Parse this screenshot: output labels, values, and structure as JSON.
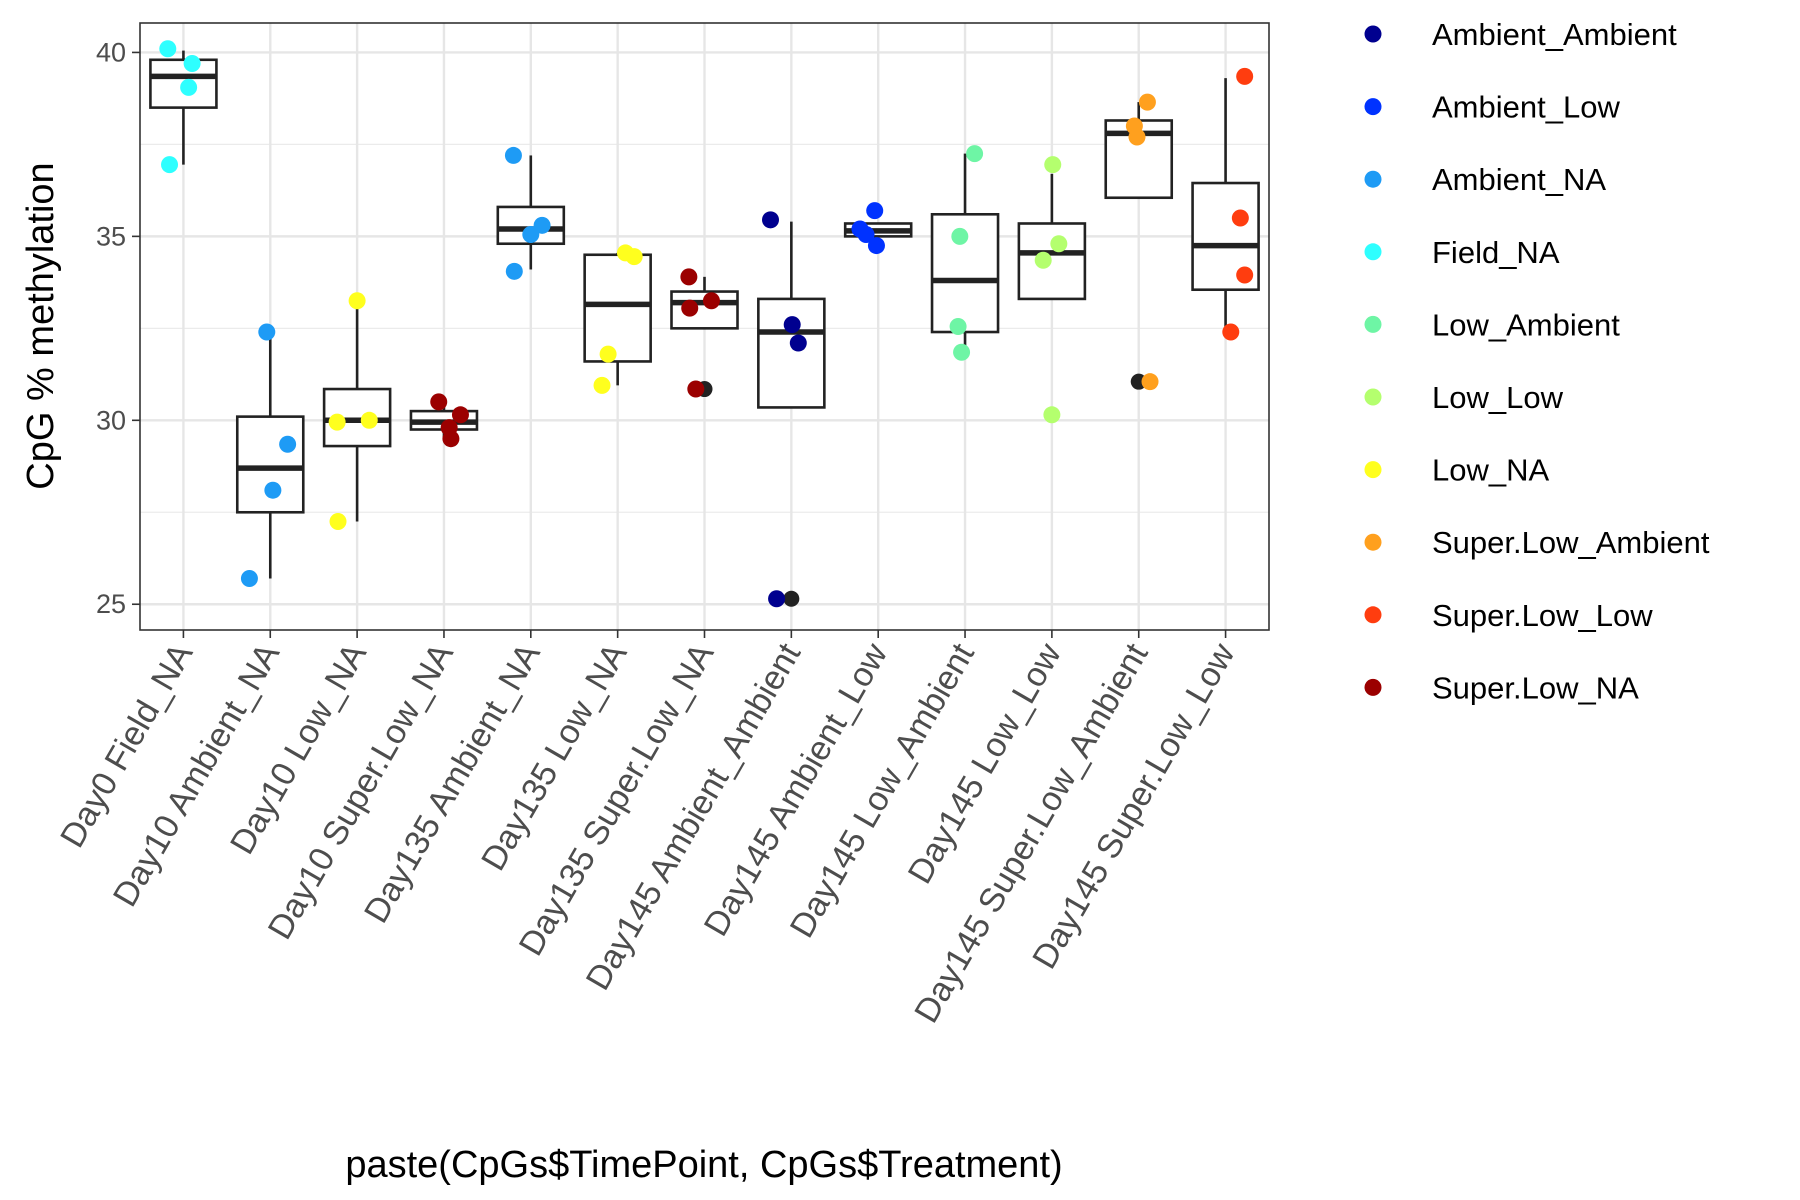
{
  "chart_data": {
    "type": "box",
    "xlabel": "paste(CpGs$TimePoint, CpGs$Treatment)",
    "ylabel": "CpG % methylation",
    "ylim": [
      24.3,
      40.8
    ],
    "yticks": [
      25,
      30,
      35,
      40
    ],
    "grid": true,
    "legend_position": "right",
    "colors": {
      "Ambient_Ambient": "#00008F",
      "Ambient_Low": "#0032FF",
      "Ambient_NA": "#1E9BF5",
      "Field_NA": "#2EFFFF",
      "Low_Ambient": "#6EF5A5",
      "Low_Low": "#B4FF6E",
      "Low_NA": "#FFFF1E",
      "Super.Low_Ambient": "#FFA01E",
      "Super.Low_Low": "#FF3D0F",
      "Super.Low_NA": "#9B0000"
    },
    "outlier_color": "#222222",
    "legend": [
      "Ambient_Ambient",
      "Ambient_Low",
      "Ambient_NA",
      "Field_NA",
      "Low_Ambient",
      "Low_Low",
      "Low_NA",
      "Super.Low_Ambient",
      "Super.Low_Low",
      "Super.Low_NA"
    ],
    "categories": [
      "Day0 Field_NA",
      "Day10 Ambient_NA",
      "Day10 Low_NA",
      "Day10 Super.Low_NA",
      "Day135 Ambient_NA",
      "Day135 Low_NA",
      "Day135 Super.Low_NA",
      "Day145 Ambient_Ambient",
      "Day145 Ambient_Low",
      "Day145 Low_Ambient",
      "Day145 Low_Low",
      "Day145 Super.Low_Ambient",
      "Day145 Super.Low_Low"
    ],
    "boxes": [
      {
        "q1": 38.5,
        "median": 39.35,
        "q3": 39.8,
        "wlo": 36.95,
        "whi": 40.05,
        "outliers": []
      },
      {
        "q1": 27.5,
        "median": 28.7,
        "q3": 30.1,
        "wlo": 25.7,
        "whi": 32.4,
        "outliers": []
      },
      {
        "q1": 29.3,
        "median": 30.0,
        "q3": 30.85,
        "wlo": 27.25,
        "whi": 33.25,
        "outliers": [
          33.25
        ]
      },
      {
        "q1": 29.75,
        "median": 29.95,
        "q3": 30.25,
        "wlo": 29.5,
        "whi": 30.45,
        "outliers": []
      },
      {
        "q1": 34.8,
        "median": 35.2,
        "q3": 35.8,
        "wlo": 34.1,
        "whi": 37.2,
        "outliers": []
      },
      {
        "q1": 31.6,
        "median": 33.15,
        "q3": 34.5,
        "wlo": 30.95,
        "whi": 34.55,
        "outliers": []
      },
      {
        "q1": 32.5,
        "median": 33.2,
        "q3": 33.5,
        "wlo": 32.5,
        "whi": 33.9,
        "outliers": [
          30.85
        ]
      },
      {
        "q1": 30.35,
        "median": 32.4,
        "q3": 33.3,
        "wlo": 30.35,
        "whi": 35.4,
        "outliers": [
          25.15
        ]
      },
      {
        "q1": 35.0,
        "median": 35.15,
        "q3": 35.35,
        "wlo": 35.0,
        "whi": 35.35,
        "outliers": []
      },
      {
        "q1": 32.4,
        "median": 33.8,
        "q3": 35.6,
        "wlo": 31.85,
        "whi": 37.25,
        "outliers": []
      },
      {
        "q1": 33.3,
        "median": 34.55,
        "q3": 35.35,
        "wlo": 33.3,
        "whi": 36.7,
        "outliers": [
          30.15
        ]
      },
      {
        "q1": 36.05,
        "median": 37.8,
        "q3": 38.15,
        "wlo": 36.05,
        "whi": 38.65,
        "outliers": [
          31.05
        ]
      },
      {
        "q1": 33.55,
        "median": 34.75,
        "q3": 36.45,
        "wlo": 32.4,
        "whi": 39.3,
        "outliers": []
      }
    ],
    "points": [
      {
        "cat": 0,
        "dx": -0.18,
        "y": 40.1,
        "group": "Field_NA"
      },
      {
        "cat": 0,
        "dx": 0.1,
        "y": 39.7,
        "group": "Field_NA"
      },
      {
        "cat": 0,
        "dx": 0.06,
        "y": 39.05,
        "group": "Field_NA"
      },
      {
        "cat": 0,
        "dx": -0.16,
        "y": 36.95,
        "group": "Field_NA"
      },
      {
        "cat": 1,
        "dx": -0.04,
        "y": 32.4,
        "group": "Ambient_NA"
      },
      {
        "cat": 1,
        "dx": 0.2,
        "y": 29.35,
        "group": "Ambient_NA"
      },
      {
        "cat": 1,
        "dx": 0.03,
        "y": 28.1,
        "group": "Ambient_NA"
      },
      {
        "cat": 1,
        "dx": -0.24,
        "y": 25.7,
        "group": "Ambient_NA"
      },
      {
        "cat": 2,
        "dx": 0.0,
        "y": 33.25,
        "group": "Low_NA"
      },
      {
        "cat": 2,
        "dx": -0.23,
        "y": 29.95,
        "group": "Low_NA"
      },
      {
        "cat": 2,
        "dx": 0.14,
        "y": 30.0,
        "group": "Low_NA"
      },
      {
        "cat": 2,
        "dx": -0.22,
        "y": 27.25,
        "group": "Low_NA"
      },
      {
        "cat": 3,
        "dx": -0.06,
        "y": 30.5,
        "group": "Super.Low_NA"
      },
      {
        "cat": 3,
        "dx": 0.19,
        "y": 30.15,
        "group": "Super.Low_NA"
      },
      {
        "cat": 3,
        "dx": 0.06,
        "y": 29.8,
        "group": "Super.Low_NA"
      },
      {
        "cat": 3,
        "dx": 0.08,
        "y": 29.5,
        "group": "Super.Low_NA"
      },
      {
        "cat": 4,
        "dx": -0.2,
        "y": 37.2,
        "group": "Ambient_NA"
      },
      {
        "cat": 4,
        "dx": 0.13,
        "y": 35.3,
        "group": "Ambient_NA"
      },
      {
        "cat": 4,
        "dx": 0.0,
        "y": 35.05,
        "group": "Ambient_NA"
      },
      {
        "cat": 4,
        "dx": -0.19,
        "y": 34.05,
        "group": "Ambient_NA"
      },
      {
        "cat": 5,
        "dx": 0.09,
        "y": 34.55,
        "group": "Low_NA"
      },
      {
        "cat": 5,
        "dx": 0.19,
        "y": 34.45,
        "group": "Low_NA"
      },
      {
        "cat": 5,
        "dx": -0.11,
        "y": 31.8,
        "group": "Low_NA"
      },
      {
        "cat": 5,
        "dx": -0.18,
        "y": 30.95,
        "group": "Low_NA"
      },
      {
        "cat": 6,
        "dx": -0.18,
        "y": 33.9,
        "group": "Super.Low_NA"
      },
      {
        "cat": 6,
        "dx": 0.08,
        "y": 33.25,
        "group": "Super.Low_NA"
      },
      {
        "cat": 6,
        "dx": -0.17,
        "y": 33.05,
        "group": "Super.Low_NA"
      },
      {
        "cat": 6,
        "dx": -0.1,
        "y": 30.85,
        "group": "Super.Low_NA"
      },
      {
        "cat": 7,
        "dx": -0.24,
        "y": 35.45,
        "group": "Ambient_Ambient"
      },
      {
        "cat": 7,
        "dx": 0.01,
        "y": 32.6,
        "group": "Ambient_Ambient"
      },
      {
        "cat": 7,
        "dx": 0.08,
        "y": 32.1,
        "group": "Ambient_Ambient"
      },
      {
        "cat": 7,
        "dx": -0.17,
        "y": 25.15,
        "group": "Ambient_Ambient"
      },
      {
        "cat": 8,
        "dx": -0.04,
        "y": 35.7,
        "group": "Ambient_Low"
      },
      {
        "cat": 8,
        "dx": -0.21,
        "y": 35.2,
        "group": "Ambient_Low"
      },
      {
        "cat": 8,
        "dx": -0.14,
        "y": 35.05,
        "group": "Ambient_Low"
      },
      {
        "cat": 8,
        "dx": -0.02,
        "y": 34.75,
        "group": "Ambient_Low"
      },
      {
        "cat": 9,
        "dx": 0.11,
        "y": 37.25,
        "group": "Low_Ambient"
      },
      {
        "cat": 9,
        "dx": -0.06,
        "y": 35.0,
        "group": "Low_Ambient"
      },
      {
        "cat": 9,
        "dx": -0.08,
        "y": 32.55,
        "group": "Low_Ambient"
      },
      {
        "cat": 9,
        "dx": -0.04,
        "y": 31.85,
        "group": "Low_Ambient"
      },
      {
        "cat": 10,
        "dx": 0.01,
        "y": 36.95,
        "group": "Low_Low"
      },
      {
        "cat": 10,
        "dx": 0.08,
        "y": 34.8,
        "group": "Low_Low"
      },
      {
        "cat": 10,
        "dx": -0.1,
        "y": 34.35,
        "group": "Low_Low"
      },
      {
        "cat": 10,
        "dx": 0.0,
        "y": 30.15,
        "group": "Low_Low"
      },
      {
        "cat": 11,
        "dx": 0.1,
        "y": 38.65,
        "group": "Super.Low_Ambient"
      },
      {
        "cat": 11,
        "dx": -0.05,
        "y": 38.0,
        "group": "Super.Low_Ambient"
      },
      {
        "cat": 11,
        "dx": -0.02,
        "y": 37.7,
        "group": "Super.Low_Ambient"
      },
      {
        "cat": 11,
        "dx": 0.13,
        "y": 31.05,
        "group": "Super.Low_Ambient"
      },
      {
        "cat": 12,
        "dx": 0.22,
        "y": 39.35,
        "group": "Super.Low_Low"
      },
      {
        "cat": 12,
        "dx": 0.17,
        "y": 35.5,
        "group": "Super.Low_Low"
      },
      {
        "cat": 12,
        "dx": 0.22,
        "y": 33.95,
        "group": "Super.Low_Low"
      },
      {
        "cat": 12,
        "dx": 0.06,
        "y": 32.4,
        "group": "Super.Low_Low"
      }
    ]
  }
}
